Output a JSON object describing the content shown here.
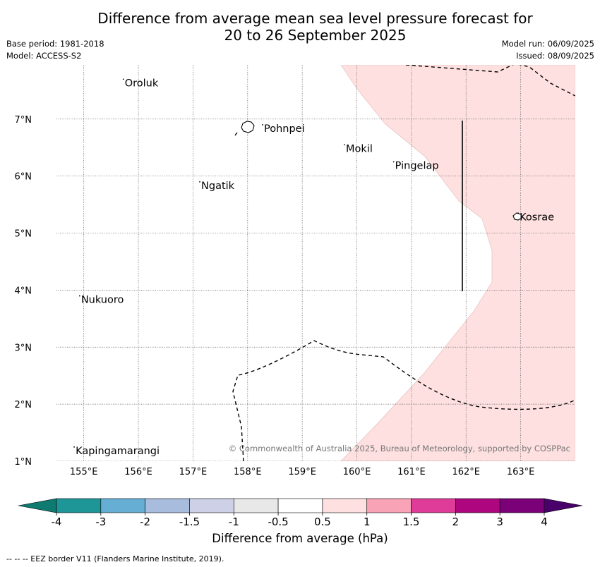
{
  "title_line1": "Difference from average mean sea level pressure forecast for",
  "title_line2": "20 to 26 September 2025",
  "base_period": "Base period: 1981-2018",
  "model": "Model: ACCESS-S2",
  "model_run": "Model run: 06/09/2025",
  "issued": "Issued: 08/09/2025",
  "copyright": "© Commonwealth of Australia 2025, Bureau of Meteorology, supported by COSPPac",
  "footnote": "--  --  -- EEZ border V11 (Flanders Marine Institute, 2019).",
  "colorbar_title": "Difference from average (hPa)",
  "colorbar": {
    "ticks": [
      "-4",
      "-3",
      "-2",
      "-1.5",
      "-1",
      "-0.5",
      "0.5",
      "1",
      "1.5",
      "2",
      "3",
      "4"
    ],
    "colors": [
      "#0e7a70",
      "#1e9698",
      "#66aed4",
      "#a8bcde",
      "#cdd0e6",
      "#e8e8e8",
      "#ffffff",
      "#fde0df",
      "#f9a3b7",
      "#de3c98",
      "#ae067e",
      "#7a0177",
      "#4a006a"
    ]
  },
  "map": {
    "lon_range": [
      154.5,
      164.0
    ],
    "lat_range": [
      1.0,
      7.95
    ],
    "lon_ticks": [
      "155°E",
      "156°E",
      "157°E",
      "158°E",
      "159°E",
      "160°E",
      "161°E",
      "162°E",
      "163°E"
    ],
    "lat_ticks": [
      "1°N",
      "2°N",
      "3°N",
      "4°N",
      "5°N",
      "6°N",
      "7°N"
    ],
    "anomaly_fill_color": "#fde0df",
    "places": [
      {
        "name": "Oroluk",
        "lon": 155.75,
        "lat": 7.65
      },
      {
        "name": "Pohnpei",
        "lon": 158.3,
        "lat": 6.85
      },
      {
        "name": "Mokil",
        "lon": 159.8,
        "lat": 6.5
      },
      {
        "name": "Pingelap",
        "lon": 160.7,
        "lat": 6.2
      },
      {
        "name": "Ngatik",
        "lon": 157.15,
        "lat": 5.85
      },
      {
        "name": "Kosrae",
        "lon": 162.98,
        "lat": 5.3
      },
      {
        "name": "Nukuoro",
        "lon": 154.95,
        "lat": 3.85
      },
      {
        "name": "Kapingamarangi",
        "lon": 154.85,
        "lat": 1.2
      }
    ]
  }
}
